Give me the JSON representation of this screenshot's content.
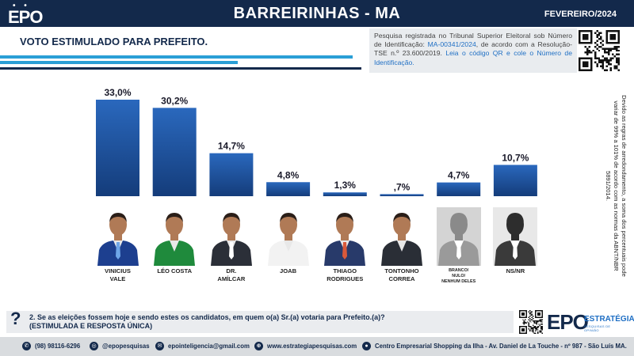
{
  "header": {
    "logo": "EPO",
    "title": "BARREIRINHAS - MA",
    "date": "FEVEREIRO/2024"
  },
  "subtitle": "VOTO ESTIMULADO PARA PREFEITO.",
  "registration": {
    "part1": "Pesquisa registrada no Tribunal Superior Eleitoral sob Número de Identificação: ",
    "id": "MA-00341/2024",
    "part2": ", de acordo com a Resolução-TSE n.º 23.600/2019. ",
    "part3": "Leia o código QR e cole o Número de Identificação."
  },
  "side_note": "Devido as regras de arredondamento, a soma dos percentuais pode variar de 99% a 101% de acordo com as normas da ABNT/NBR 5891/2014.",
  "chart_data": {
    "type": "bar",
    "categories": [
      "VINICIUS VALE",
      "LÉO COSTA",
      "DR. AMÍLCAR",
      "JOAB",
      "THIAGO RODRIGUES",
      "TONTONHO CORREA",
      "BRANCO/ NULO/ NENHUM DELES",
      "NS/NR"
    ],
    "values": [
      33.0,
      30.2,
      14.7,
      4.8,
      1.3,
      0.7,
      4.7,
      10.7
    ],
    "value_labels": [
      "33,0%",
      "30,2%",
      "14,7%",
      "4,8%",
      "1,3%",
      ",7%",
      "4,7%",
      "10,7%"
    ],
    "ylim": [
      0,
      33.0
    ],
    "grid": false,
    "bar_color": "#1b4f9c"
  },
  "candidates": [
    {
      "line1": "VINICIUS",
      "line2": "VALE",
      "line3": "",
      "photo": "person",
      "shirt": "#1d3f8f",
      "tie": "#6fa6e8"
    },
    {
      "line1": "LÉO COSTA",
      "line2": "",
      "line3": "",
      "photo": "person",
      "shirt": "#1f8a3c",
      "tie": ""
    },
    {
      "line1": "DR.",
      "line2": "AMÍLCAR",
      "line3": "",
      "photo": "person",
      "shirt": "#2b2f38",
      "tie": "#ffffff"
    },
    {
      "line1": "JOAB",
      "line2": "",
      "line3": "",
      "photo": "person",
      "shirt": "#f2f2f2",
      "tie": ""
    },
    {
      "line1": "THIAGO",
      "line2": "RODRIGUES",
      "line3": "",
      "photo": "person",
      "shirt": "#283a6a",
      "tie": "#d9593a"
    },
    {
      "line1": "TONTONHO",
      "line2": "CORREA",
      "line3": "",
      "photo": "person",
      "shirt": "#2a2e36",
      "tie": ""
    },
    {
      "line1": "BRANCO/",
      "line2": "NULO/",
      "line3": "NENHUM DELES",
      "photo": "silhouette",
      "shirt": "#9a9a9a",
      "tie": "#ffffff"
    },
    {
      "line1": "NS/NR",
      "line2": "",
      "line3": "",
      "photo": "silhouette-dark",
      "shirt": "#3a3a3a",
      "tie": "#ffffff"
    }
  ],
  "question": {
    "mark": "?",
    "line1": "2. Se as eleições fossem hoje e sendo estes os candidatos, em quem o(a) Sr.(a) votaria para Prefeito.(a)?",
    "line2": "(ESTIMULADA E RESPOSTA ÚNICA)"
  },
  "logo_bottom": {
    "big": "EPO",
    "estrategia": "ESTRATÉGIA",
    "tagline": "PESQUISAS DE OPINIÃO"
  },
  "footer": {
    "phone": "(98) 98116-6296",
    "instagram": "@epopesquisas",
    "email": "epointeligencia@gmail.com",
    "site": "www.estrategiapesquisas.com",
    "address": "Centro Empresarial Shopping da Ilha - Av. Daniel de La Touche - nº 987 - São Luís MA.",
    "icons": [
      "whatsapp-icon",
      "instagram-icon",
      "email-icon",
      "globe-icon",
      "location-icon"
    ]
  }
}
